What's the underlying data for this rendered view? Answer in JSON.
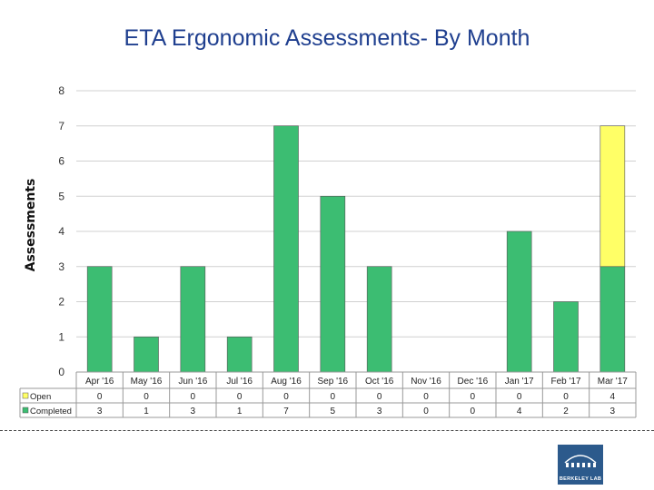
{
  "page": {
    "title": "ETA Ergonomic Assessments- By Month",
    "logo_text": "BERKELEY LAB"
  },
  "chart_data": {
    "type": "bar",
    "stacked": true,
    "title": "ETA Ergonomic Assessments- By Month",
    "xlabel": "",
    "ylabel": "Assessments",
    "ylim": [
      0,
      8
    ],
    "yticks": [
      0,
      1,
      2,
      3,
      4,
      5,
      6,
      7,
      8
    ],
    "grid": true,
    "categories": [
      "Apr '16",
      "May '16",
      "Jun '16",
      "Jul '16",
      "Aug '16",
      "Sep '16",
      "Oct '16",
      "Nov '16",
      "Dec '16",
      "Jan '17",
      "Feb '17",
      "Mar '17"
    ],
    "series": [
      {
        "name": "Completed",
        "color": "#3cbd72",
        "values": [
          3,
          1,
          3,
          1,
          7,
          5,
          3,
          0,
          0,
          4,
          2,
          3
        ]
      },
      {
        "name": "Open",
        "color": "#ffff66",
        "values": [
          0,
          0,
          0,
          0,
          0,
          0,
          0,
          0,
          0,
          0,
          0,
          4
        ]
      }
    ],
    "table_rows": [
      "Open",
      "Completed"
    ]
  }
}
